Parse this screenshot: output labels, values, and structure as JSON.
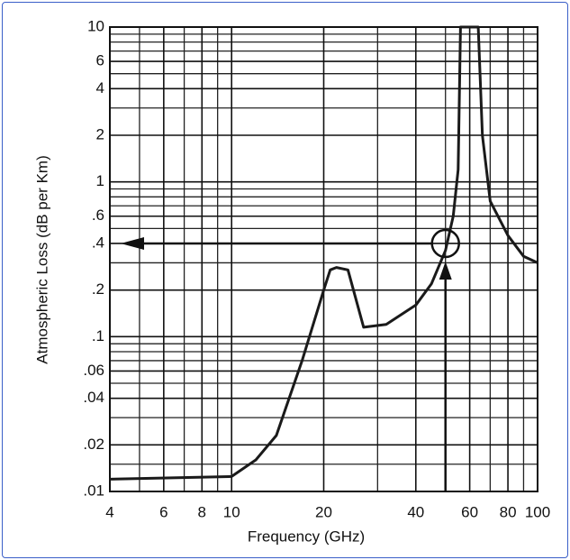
{
  "chart_data": {
    "type": "line",
    "x_label": "Frequency (GHz)",
    "y_label": "Atmospheric Loss (dB per Km)",
    "x_log": true,
    "y_log": true,
    "grid": true,
    "xlim": [
      4,
      100
    ],
    "ylim": [
      0.01,
      10
    ],
    "xticks": [
      4,
      6,
      8,
      10,
      20,
      40,
      60,
      80,
      100
    ],
    "yticks": [
      10,
      6,
      4,
      2,
      1,
      {
        "value": 0.6,
        "label": ".6"
      },
      {
        "value": 0.4,
        "label": ".4"
      },
      {
        "value": 0.2,
        "label": ".2"
      },
      {
        "value": 0.1,
        "label": ".1"
      },
      {
        "value": 0.06,
        "label": ".06"
      },
      {
        "value": 0.04,
        "label": ".04"
      },
      {
        "value": 0.02,
        "label": ".02"
      },
      {
        "value": 0.01,
        "label": ".01"
      }
    ],
    "x_minor_grid": [
      5,
      7,
      9,
      30,
      50,
      70,
      90
    ],
    "y_minor_grid": [
      0.015,
      0.03,
      0.05,
      0.07,
      0.08,
      0.09,
      0.3,
      0.5,
      0.7,
      0.8,
      0.9,
      3,
      5,
      7,
      8,
      9
    ],
    "color": "#1a1a1a",
    "x": [
      4,
      10,
      12,
      14,
      17,
      20,
      21,
      22,
      24,
      27,
      32,
      40,
      45,
      50,
      53,
      55,
      56,
      64,
      66,
      70,
      80,
      90,
      100
    ],
    "values": [
      0.012,
      0.0125,
      0.016,
      0.023,
      0.07,
      0.2,
      0.27,
      0.28,
      0.27,
      0.115,
      0.12,
      0.16,
      0.22,
      0.36,
      0.6,
      1.2,
      10,
      10,
      2,
      0.75,
      0.45,
      0.33,
      0.3
    ],
    "marker_point": {
      "x": 50,
      "y": 0.4
    }
  }
}
